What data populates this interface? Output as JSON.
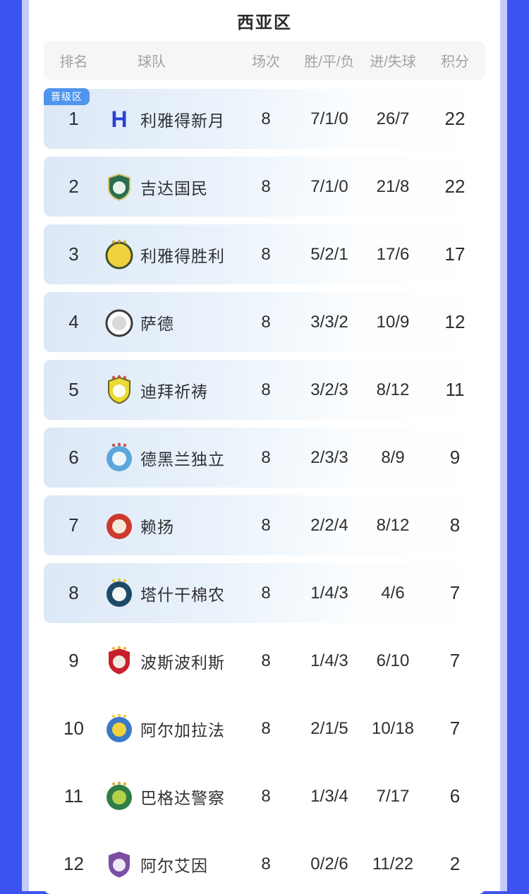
{
  "page": {
    "title": "西亚区"
  },
  "colors": {
    "page_bg": "#3d53f3",
    "frame_edge": "#c5cbf9",
    "sheet_bg": "#ffffff",
    "header_bar_bg": "#f6f6f7",
    "header_text": "#a2a2a6",
    "body_text": "#2e2e30",
    "badge_bg": "#4f95ee",
    "badge_text": "#ffffff",
    "highlight_row_start": "#dce8f7"
  },
  "badge": {
    "label": "晋级区"
  },
  "table": {
    "columns": [
      "排名",
      "球队",
      "场次",
      "胜/平/负",
      "进/失球",
      "积分"
    ],
    "rows": [
      {
        "rank": "1",
        "team": "利雅得新月",
        "played": "8",
        "wdl": "7/1/0",
        "goals": "26/7",
        "points": "22",
        "highlight": true,
        "logo": {
          "shape": "none",
          "monogram": "H",
          "monogram_color": "#2840d6"
        }
      },
      {
        "rank": "2",
        "team": "吉达国民",
        "played": "8",
        "wdl": "7/1/0",
        "goals": "21/8",
        "points": "22",
        "highlight": true,
        "logo": {
          "shape": "shield",
          "primary": "#2a6e4e",
          "ring": "#d9c06a",
          "inner": "#e9f2ea"
        }
      },
      {
        "rank": "3",
        "team": "利雅得胜利",
        "played": "8",
        "wdl": "5/2/1",
        "goals": "17/6",
        "points": "17",
        "highlight": true,
        "logo": {
          "shape": "circle",
          "primary": "#f0d23e",
          "ring": "#44502a",
          "accent": "#caa93a"
        }
      },
      {
        "rank": "4",
        "team": "萨德",
        "played": "8",
        "wdl": "3/3/2",
        "goals": "10/9",
        "points": "12",
        "highlight": true,
        "logo": {
          "shape": "circle",
          "primary": "#fbfbfb",
          "ring": "#3a3a3a",
          "inner": "#d9d9d9"
        }
      },
      {
        "rank": "5",
        "team": "迪拜祈祷",
        "played": "8",
        "wdl": "3/2/3",
        "goals": "8/12",
        "points": "11",
        "highlight": true,
        "logo": {
          "shape": "shield",
          "primary": "#ecd934",
          "ring": "#6b6520",
          "inner": "#fdfdf4",
          "accent": "#c94f43"
        }
      },
      {
        "rank": "6",
        "team": "德黑兰独立",
        "played": "8",
        "wdl": "2/3/3",
        "goals": "8/9",
        "points": "9",
        "highlight": true,
        "logo": {
          "shape": "circle",
          "primary": "#5ba7dc",
          "inner": "#eef6fc",
          "accent": "#c94f43"
        }
      },
      {
        "rank": "7",
        "team": "赖扬",
        "played": "8",
        "wdl": "2/2/4",
        "goals": "8/12",
        "points": "8",
        "highlight": true,
        "logo": {
          "shape": "circle",
          "primary": "#cc3a2b",
          "inner": "#f3e9d7"
        }
      },
      {
        "rank": "8",
        "team": "塔什干棉农",
        "played": "8",
        "wdl": "1/4/3",
        "goals": "4/6",
        "points": "7",
        "highlight": true,
        "logo": {
          "shape": "circle",
          "primary": "#1d4a68",
          "inner": "#f2f6f5",
          "accent": "#e8c93e"
        }
      },
      {
        "rank": "9",
        "team": "波斯波利斯",
        "played": "8",
        "wdl": "1/4/3",
        "goals": "6/10",
        "points": "7",
        "highlight": false,
        "logo": {
          "shape": "shield",
          "primary": "#c8202d",
          "inner": "#f0e9e2",
          "accent": "#e8b93a"
        }
      },
      {
        "rank": "10",
        "team": "阿尔加拉法",
        "played": "8",
        "wdl": "2/1/5",
        "goals": "10/18",
        "points": "7",
        "highlight": false,
        "logo": {
          "shape": "circle",
          "primary": "#3a79c8",
          "inner": "#f0d23e",
          "accent": "#f0d23e"
        }
      },
      {
        "rank": "11",
        "team": "巴格达警察",
        "played": "8",
        "wdl": "1/3/4",
        "goals": "7/17",
        "points": "6",
        "highlight": false,
        "logo": {
          "shape": "circle",
          "primary": "#2f7d46",
          "inner": "#b5d148",
          "accent": "#d8b23a"
        }
      },
      {
        "rank": "12",
        "team": "阿尔艾因",
        "played": "8",
        "wdl": "0/2/6",
        "goals": "11/22",
        "points": "2",
        "highlight": false,
        "logo": {
          "shape": "shield",
          "primary": "#7b4fa3",
          "inner": "#efe8f5"
        }
      }
    ]
  }
}
